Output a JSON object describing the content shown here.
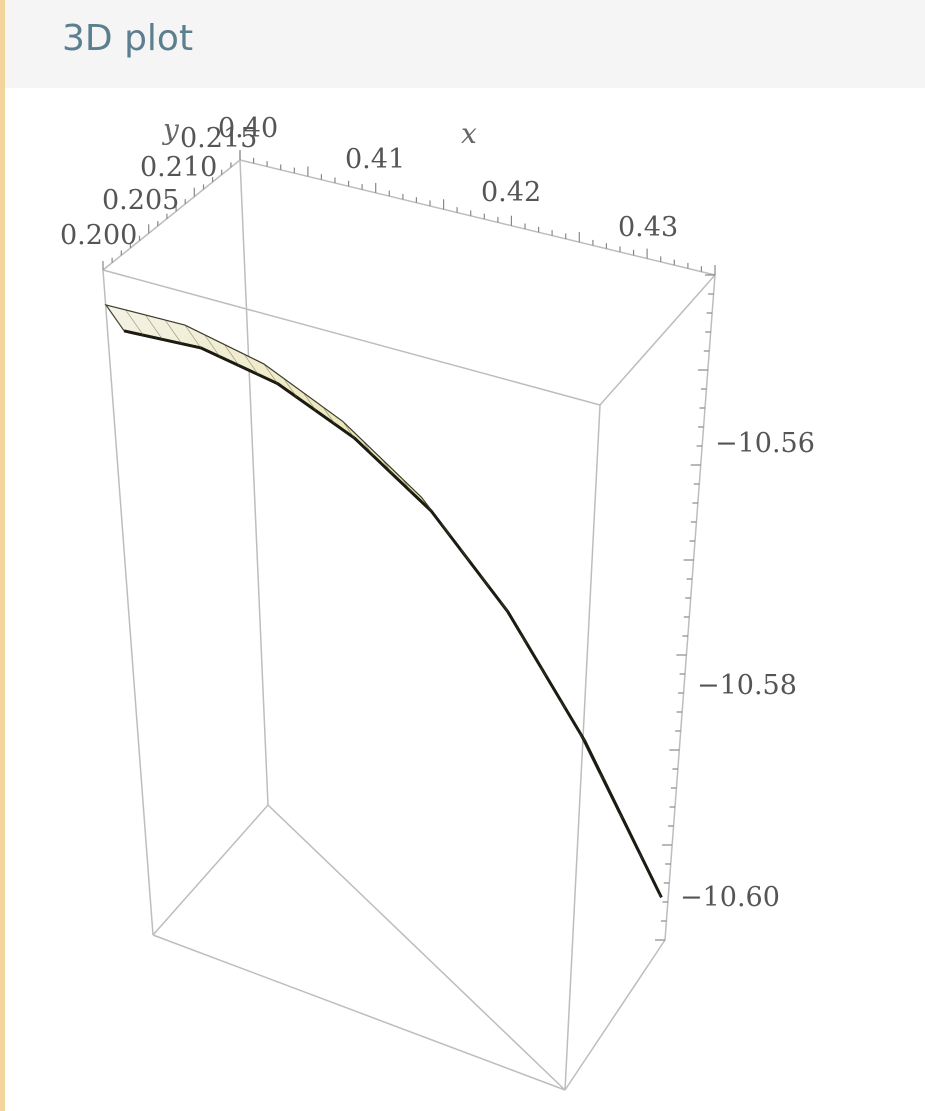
{
  "panel": {
    "title": "3D plot"
  },
  "chart_data": {
    "type": "surface3d",
    "xlabel": "x",
    "ylabel": "y",
    "zlabel": "",
    "x_ticks": [
      "0.40",
      "0.41",
      "0.42",
      "0.43"
    ],
    "y_ticks": [
      "0.200",
      "0.205",
      "0.210",
      "0.215"
    ],
    "z_ticks": [
      "−10.56",
      "−10.58",
      "−10.60"
    ],
    "xlim": [
      0.4,
      0.435
    ],
    "ylim": [
      0.2,
      0.215
    ],
    "zlim": [
      -10.608,
      -10.535
    ],
    "surface_color": "#e8e2a8",
    "surface_dark_color": "#2a2a1a",
    "box_color": "#bdbdbd",
    "surface_curve": {
      "x": [
        0.4,
        0.405,
        0.41,
        0.415,
        0.42,
        0.425,
        0.43,
        0.435
      ],
      "z": [
        -10.541,
        -10.543,
        -10.547,
        -10.553,
        -10.561,
        -10.572,
        -10.586,
        -10.603
      ]
    }
  }
}
